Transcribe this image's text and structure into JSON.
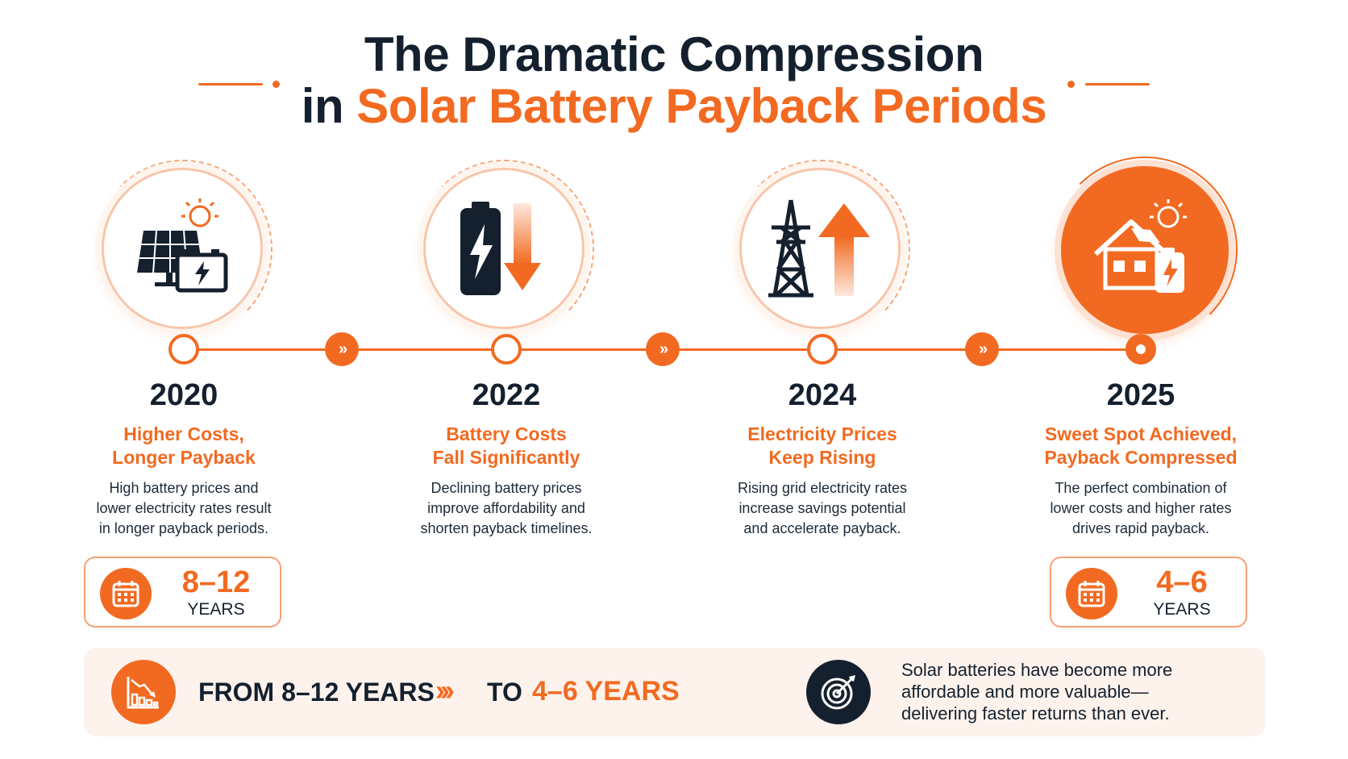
{
  "title": {
    "line1": "The Dramatic Compression",
    "line2_prefix": "in ",
    "line2_accent": "Solar Battery Payback Periods"
  },
  "colors": {
    "accent": "#f26a21",
    "dark": "#14202e",
    "banner_bg": "#fdf3ec"
  },
  "milestones": [
    {
      "year": "2020",
      "heading1": "Higher Costs,",
      "heading2": "Longer Payback",
      "desc1": "High battery prices and",
      "desc2": "lower electricity rates result",
      "desc3": "in longer payback periods.",
      "icon": "solar-panel-battery-icon"
    },
    {
      "year": "2022",
      "heading1": "Battery Costs",
      "heading2": "Fall Significantly",
      "desc1": "Declining battery prices",
      "desc2": "improve affordability and",
      "desc3": "shorten payback timelines.",
      "icon": "battery-down-arrow-icon"
    },
    {
      "year": "2024",
      "heading1": "Electricity Prices",
      "heading2": "Keep Rising",
      "desc1": "Rising grid electricity rates",
      "desc2": "increase savings potential",
      "desc3": "and accelerate payback.",
      "icon": "power-tower-up-arrow-icon"
    },
    {
      "year": "2025",
      "heading1": "Sweet Spot Achieved,",
      "heading2": "Payback Compressed",
      "desc1": "The perfect combination of",
      "desc2": "lower costs and higher rates",
      "desc3": "drives rapid payback.",
      "icon": "house-solar-battery-icon"
    }
  ],
  "payback_start": {
    "value": "8–12",
    "unit": "YEARS"
  },
  "payback_end": {
    "value": "4–6",
    "unit": "YEARS"
  },
  "banner": {
    "from_text": "FROM 8–12 YEARS",
    "arrows": "›››",
    "to_text": "TO",
    "to_value": "4–6 YEARS",
    "summary1": "Solar batteries have become more",
    "summary2": "affordable and more valuable—",
    "summary3": "delivering faster returns than ever."
  },
  "chevron_glyph": "»"
}
